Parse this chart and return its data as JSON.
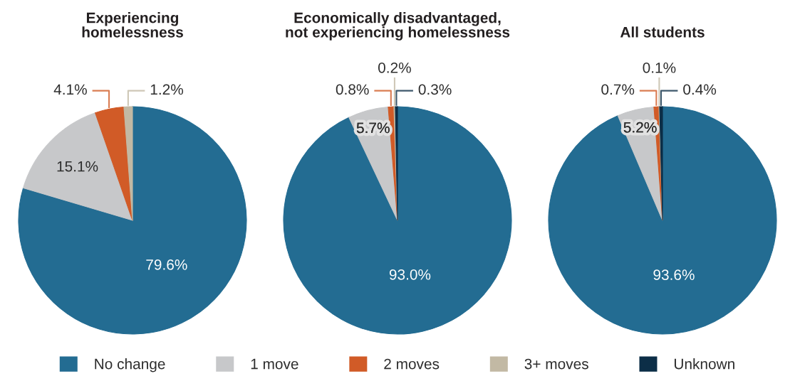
{
  "chart_data": {
    "type": "pie",
    "categories": [
      "No change",
      "1 move",
      "2 moves",
      "3+ moves",
      "Unknown"
    ],
    "colors": [
      "#236c92",
      "#c7c8ca",
      "#d15b27",
      "#c2b9a4",
      "#0c2e47"
    ],
    "legend": "bottom",
    "series": [
      {
        "name": "Experiencing\nhomelessness",
        "values": [
          79.6,
          15.1,
          4.1,
          1.2,
          null
        ],
        "value_labels": [
          "79.6%",
          "15.1%",
          "4.1%",
          "1.2%",
          null
        ]
      },
      {
        "name": "Economically disadvantaged,\nnot experiencing homelessness",
        "values": [
          93.0,
          5.7,
          0.8,
          0.2,
          0.3
        ],
        "value_labels": [
          "93.0%",
          "5.7%",
          "0.8%",
          "0.2%",
          "0.3%"
        ]
      },
      {
        "name": "All students",
        "values": [
          93.6,
          5.2,
          0.7,
          0.1,
          0.4
        ],
        "value_labels": [
          "93.6%",
          "5.2%",
          "0.7%",
          "0.1%",
          "0.4%"
        ]
      }
    ]
  }
}
